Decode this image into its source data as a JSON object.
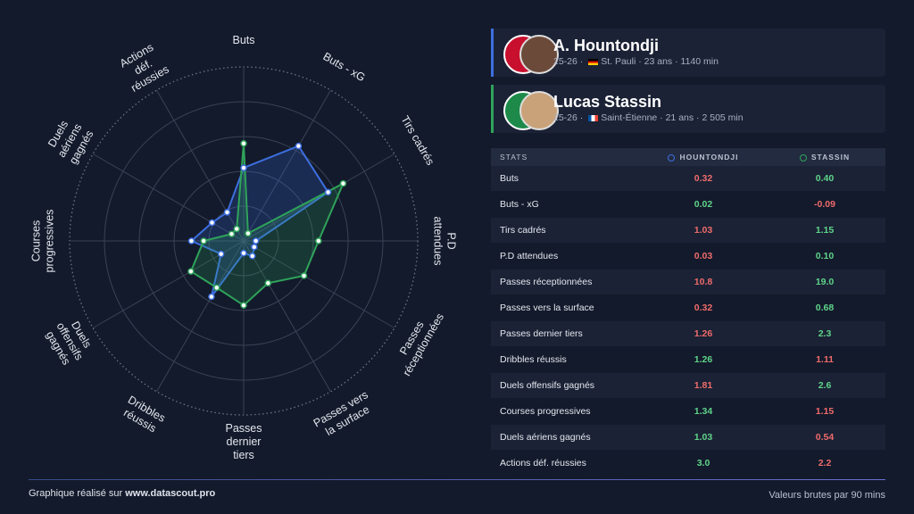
{
  "chart_data": {
    "type": "radar",
    "axes": [
      [
        "Buts"
      ],
      [
        "Buts - xG"
      ],
      [
        "Tirs cadrés"
      ],
      [
        "P.D",
        "attendues"
      ],
      [
        "Passes",
        "réceptionnées"
      ],
      [
        "Passes vers",
        "la surface"
      ],
      [
        "Passes",
        "dernier",
        "tiers"
      ],
      [
        "Dribbles",
        "réussis"
      ],
      [
        "Duels",
        "offensifs",
        "gagnés"
      ],
      [
        "Courses",
        "progressives"
      ],
      [
        "Duels",
        "aériens",
        "gagnés"
      ],
      [
        "Actions",
        "déf.",
        "réussies"
      ]
    ],
    "series": [
      {
        "name": "HOUNTONDJI",
        "color": "#3d6fe0",
        "values": [
          42,
          63,
          56,
          7,
          7,
          10,
          7,
          37,
          15,
          30,
          21,
          19
        ]
      },
      {
        "name": "STASSIN",
        "color": "#2fa35a",
        "values": [
          56,
          5,
          66,
          43,
          40,
          28,
          37,
          31,
          35,
          23,
          8,
          8
        ]
      }
    ],
    "rlim": [
      0,
      100
    ],
    "rticks": [
      20,
      40,
      60,
      80,
      100
    ]
  },
  "players": [
    {
      "name": "A. Hountondji",
      "season": "25-26",
      "club": "St. Pauli",
      "age": "23 ans",
      "minutes": "1140 min"
    },
    {
      "name": "Lucas Stassin",
      "season": "25-26",
      "club": "Saint-Étienne",
      "age": "21 ans",
      "minutes": "2 505 min"
    }
  ],
  "table": {
    "header": [
      "STATS",
      "HOUNTONDJI",
      "STASSIN"
    ],
    "rows": [
      [
        "Buts",
        "0.32",
        "0.40"
      ],
      [
        "Buts - xG",
        "0.02",
        "-0.09"
      ],
      [
        "Tirs cadrés",
        "1.03",
        "1.15"
      ],
      [
        "P.D attendues",
        "0.03",
        "0.10"
      ],
      [
        "Passes réceptionnées",
        "10.8",
        "19.0"
      ],
      [
        "Passes vers la surface",
        "0.32",
        "0.68"
      ],
      [
        "Passes dernier tiers",
        "1.26",
        "2.3"
      ],
      [
        "Dribbles réussis",
        "1.26",
        "1.11"
      ],
      [
        "Duels offensifs gagnés",
        "1.81",
        "2.6"
      ],
      [
        "Courses progressives",
        "1.34",
        "1.15"
      ],
      [
        "Duels aériens gagnés",
        "1.03",
        "0.54"
      ],
      [
        "Actions déf. réussies",
        "3.0",
        "2.2"
      ]
    ],
    "cell_colors": [
      [
        "#ef6b6b",
        "#5fd48a"
      ],
      [
        "#5fd48a",
        "#ef6b6b"
      ],
      [
        "#ef6b6b",
        "#5fd48a"
      ],
      [
        "#ef6b6b",
        "#5fd48a"
      ],
      [
        "#ef6b6b",
        "#5fd48a"
      ],
      [
        "#ef6b6b",
        "#5fd48a"
      ],
      [
        "#ef6b6b",
        "#5fd48a"
      ],
      [
        "#5fd48a",
        "#ef6b6b"
      ],
      [
        "#ef6b6b",
        "#5fd48a"
      ],
      [
        "#5fd48a",
        "#ef6b6b"
      ],
      [
        "#5fd48a",
        "#ef6b6b"
      ],
      [
        "#5fd48a",
        "#ef6b6b"
      ]
    ]
  },
  "footer": {
    "left_prefix": "Graphique réalisé sur",
    "left_link": "www.datascout.pro",
    "right": "Valeurs brutes par 90 mins"
  }
}
